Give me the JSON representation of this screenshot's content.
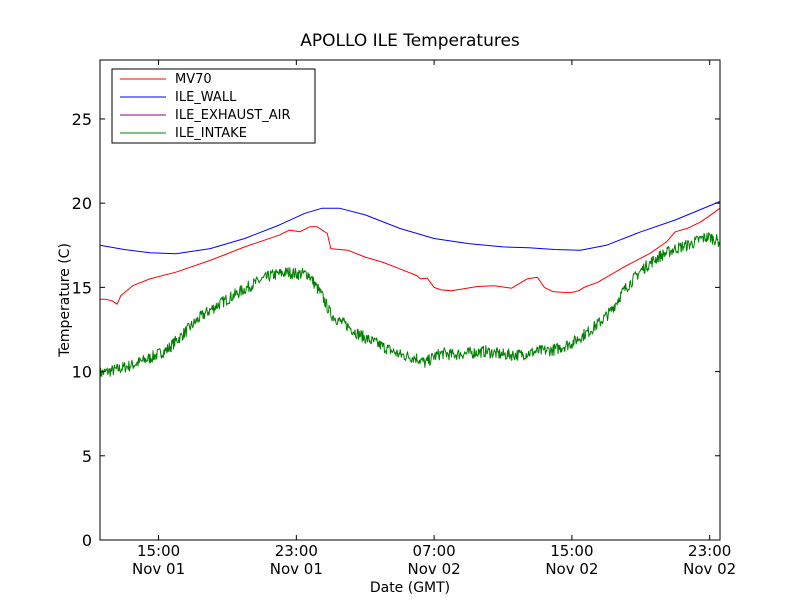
{
  "chart_data": {
    "type": "line",
    "title": "APOLLO ILE Temperatures",
    "xlabel": "Date (GMT)",
    "ylabel": "Temperature (C)",
    "ylim": [
      0,
      28.5
    ],
    "xlim_hours": [
      11.6,
      47.6
    ],
    "yticks": [
      0,
      5,
      10,
      15,
      20,
      25
    ],
    "xticks": [
      {
        "hour": 15,
        "time": "15:00",
        "date": "Nov 01"
      },
      {
        "hour": 23,
        "time": "23:00",
        "date": "Nov 01"
      },
      {
        "hour": 31,
        "time": "07:00",
        "date": "Nov 02"
      },
      {
        "hour": 39,
        "time": "15:00",
        "date": "Nov 02"
      },
      {
        "hour": 47,
        "time": "23:00",
        "date": "Nov 02"
      }
    ],
    "legend_position": "upper-left",
    "series": [
      {
        "name": "MV70",
        "color": "#ff0000",
        "noise": 0,
        "x": [
          11.6,
          11.9,
          12.3,
          12.6,
          12.8,
          13.5,
          14.5,
          16,
          18,
          20,
          22,
          22.6,
          23.2,
          23.8,
          24.2,
          24.8,
          25,
          25.5,
          26,
          27,
          28,
          29,
          30,
          30.2,
          30.6,
          31,
          31.4,
          32,
          32.6,
          33.5,
          34.5,
          35.5,
          36.4,
          37,
          37.4,
          37.9,
          38.5,
          39,
          39.4,
          39.7,
          40.5,
          42,
          43.5,
          44.5,
          45,
          45.7,
          46.5,
          47.2,
          47.6
        ],
        "y": [
          14.3,
          14.3,
          14.2,
          14.0,
          14.5,
          15.1,
          15.5,
          15.9,
          16.6,
          17.4,
          18.1,
          18.4,
          18.3,
          18.6,
          18.6,
          18.2,
          17.3,
          17.25,
          17.2,
          16.8,
          16.5,
          16.1,
          15.7,
          15.5,
          15.55,
          15.0,
          14.85,
          14.8,
          14.9,
          15.05,
          15.1,
          14.95,
          15.5,
          15.6,
          15.0,
          14.75,
          14.7,
          14.7,
          14.8,
          15.0,
          15.3,
          16.2,
          17.0,
          17.7,
          18.3,
          18.5,
          18.9,
          19.4,
          19.7
        ]
      },
      {
        "name": "ILE_WALL",
        "color": "#0000ff",
        "noise": 0,
        "x": [
          11.6,
          13,
          14.5,
          16,
          18,
          20,
          22,
          23.5,
          24.5,
          25.5,
          27,
          29,
          31,
          33,
          35,
          36.5,
          38,
          39.5,
          41,
          43,
          45,
          47.6
        ],
        "y": [
          17.5,
          17.25,
          17.05,
          17.0,
          17.3,
          17.9,
          18.7,
          19.4,
          19.7,
          19.7,
          19.3,
          18.5,
          17.9,
          17.6,
          17.4,
          17.35,
          17.25,
          17.2,
          17.5,
          18.3,
          19.0,
          20.1
        ]
      },
      {
        "name": "ILE_EXHAUST_AIR",
        "color": "#8b008b",
        "noise": 0,
        "x": [],
        "y": []
      },
      {
        "name": "ILE_INTAKE",
        "color": "#008000",
        "noise": 0.35,
        "x": [
          11.6,
          12.5,
          13.5,
          14.5,
          15.5,
          16.5,
          17.5,
          18.5,
          19.5,
          20.5,
          21.5,
          22.5,
          23,
          23.7,
          24,
          24.5,
          25,
          25.5,
          26,
          26.5,
          27,
          28,
          29,
          30,
          30.5,
          31,
          31.5,
          32,
          33,
          34,
          35,
          36,
          37,
          38,
          39,
          40,
          40.7,
          41.2,
          42,
          43,
          44,
          45,
          46,
          46.5,
          47,
          47.6
        ],
        "y": [
          9.9,
          10.1,
          10.4,
          10.8,
          11.3,
          12.3,
          13.3,
          14.0,
          14.6,
          15.2,
          15.7,
          15.9,
          15.8,
          15.8,
          15.3,
          14.5,
          13.4,
          13.0,
          12.7,
          12.3,
          12.0,
          11.5,
          11.0,
          10.8,
          10.5,
          10.9,
          11.1,
          11.0,
          11.1,
          11.2,
          11.0,
          11.0,
          11.2,
          11.3,
          11.7,
          12.4,
          13.0,
          13.5,
          14.8,
          16.0,
          16.8,
          17.3,
          17.6,
          17.9,
          18.0,
          17.7
        ]
      }
    ]
  }
}
